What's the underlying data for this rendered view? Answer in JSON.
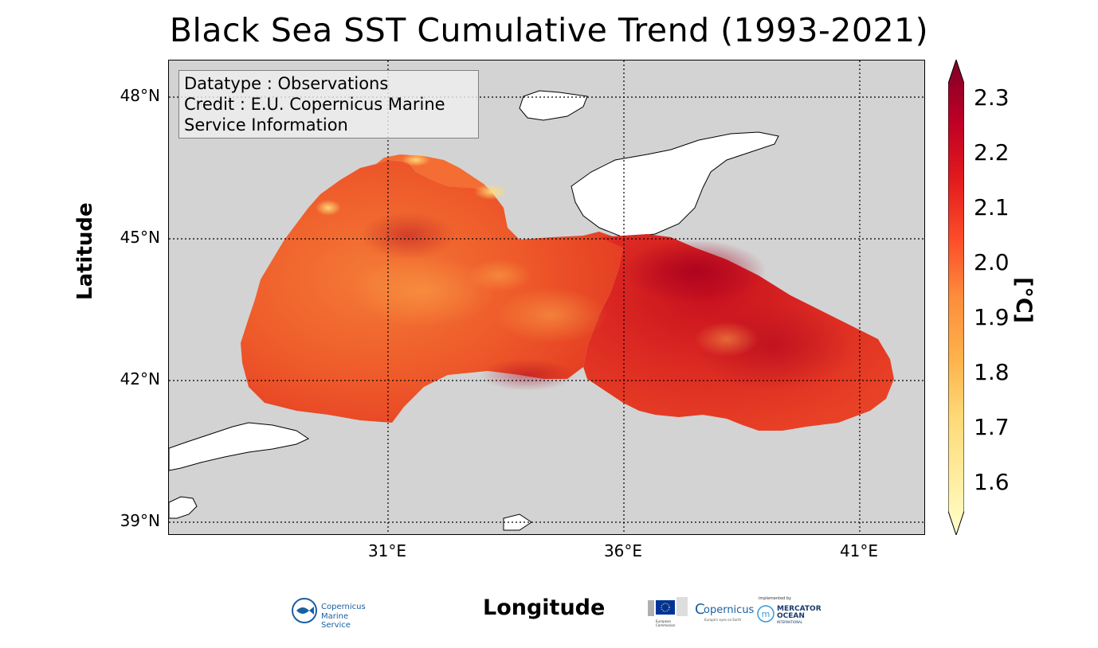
{
  "title": "Black Sea SST Cumulative Trend (1993-2021)",
  "map": {
    "xlabel": "Longitude",
    "ylabel": "Latitude",
    "lat_ticks": [
      "48°N",
      "45°N",
      "42°N",
      "39°N"
    ],
    "lon_ticks": [
      "31°E",
      "36°E",
      "41°E"
    ],
    "land_color": "#ffffff",
    "ocean_mask_color": "#d3d3d3",
    "gridlines": "dotted"
  },
  "credit": {
    "line1": "Datatype : Observations",
    "line2": "Credit : E.U. Copernicus Marine",
    "line3": "Service Information"
  },
  "colorbar": {
    "label": "[°C]",
    "ticks": [
      "2.3",
      "2.2",
      "2.1",
      "2.0",
      "1.9",
      "1.8",
      "1.7",
      "1.6"
    ],
    "range": [
      1.52,
      2.36
    ],
    "colormap": "YlOrRd",
    "colors": [
      "#ffffcc",
      "#ffeda0",
      "#fed976",
      "#feb24c",
      "#fd8d3c",
      "#fc4e2a",
      "#e31a1c",
      "#bd0026",
      "#800026"
    ]
  },
  "logos": {
    "cmems_line1": "Copernicus",
    "cmems_line2": "Marine Service",
    "copernicus": "opernicus",
    "copernicus_tag": "Europe's eyes on Earth",
    "eu_caption": "European Commission",
    "mercator_pre": "implemented by",
    "mercator_line1": "MERCATOR",
    "mercator_line2": "OCEAN",
    "mercator_line3": "INTERNATIONAL"
  }
}
